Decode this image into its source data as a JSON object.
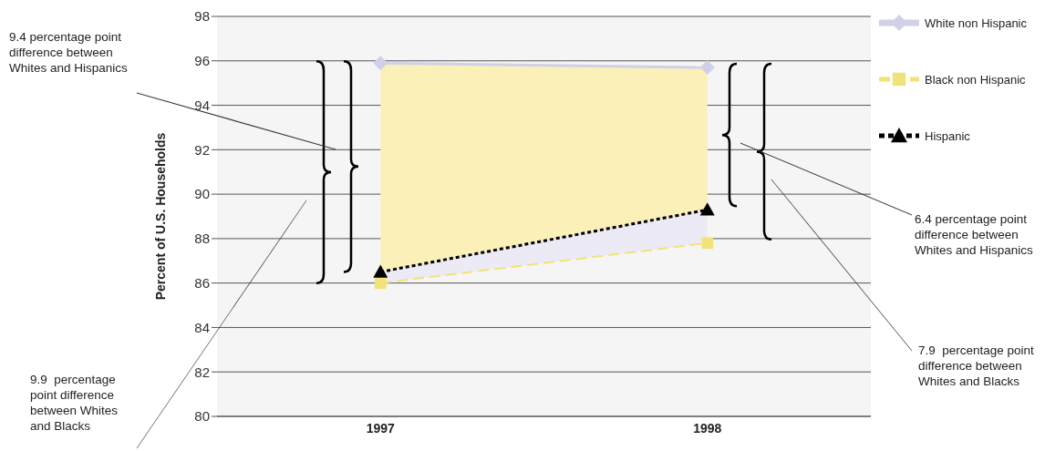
{
  "chart_data": {
    "type": "line",
    "ylabel": "Percent of U.S. Households",
    "categories": [
      "1997",
      "1998"
    ],
    "series": [
      {
        "name": "White non Hispanic",
        "color": "#d0d0e8",
        "values": [
          95.9,
          95.7
        ],
        "lower": [
          86.5,
          89.3
        ],
        "upper": [
          95.9,
          95.7
        ],
        "marker": "diamond",
        "line_style": "solid"
      },
      {
        "name": "Black non Hispanic",
        "color": "#f2e27a",
        "values": [
          86.0,
          87.8
        ],
        "marker": "square",
        "line_style": "dashed"
      },
      {
        "name": "Hispanic",
        "color": "#000000",
        "values": [
          86.5,
          89.3
        ],
        "lower": [
          86.0,
          87.8
        ],
        "upper": [
          86.5,
          89.3
        ],
        "marker": "triangle",
        "line_style": "dotted"
      }
    ],
    "ylim": [
      80,
      98
    ],
    "yticks": [
      80,
      82,
      84,
      86,
      88,
      90,
      92,
      94,
      96,
      98
    ],
    "grid": "y",
    "legend": "right",
    "annotations": [
      "9.4 percentage point difference between Whites and Hispanics",
      "9.9  percentage point difference between Whites and Blacks",
      "6.4 percentage point difference between Whites and Hispanics",
      "7.9  percentage point difference between Whites and Blacks"
    ]
  }
}
